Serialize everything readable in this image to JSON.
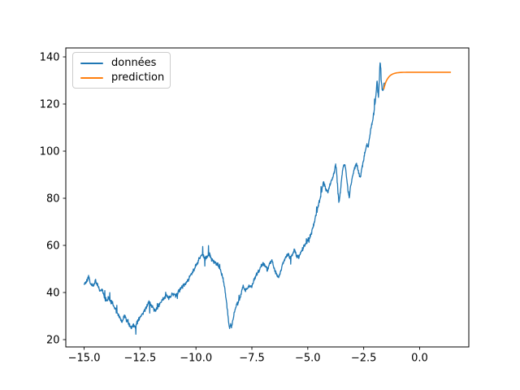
{
  "chart_data": {
    "type": "line",
    "title": "",
    "xlabel": "",
    "ylabel": "",
    "grid": false,
    "xlim": [
      -15.82,
      2.2
    ],
    "ylim": [
      16.9,
      143.8
    ],
    "x_ticks": [
      -15.0,
      -12.5,
      -10.0,
      -7.5,
      -5.0,
      -2.5,
      0.0
    ],
    "x_tick_labels": [
      "−15.0",
      "−12.5",
      "−10.0",
      "−7.5",
      "−5.0",
      "−2.5",
      "0.0"
    ],
    "y_ticks": [
      20,
      40,
      60,
      80,
      100,
      120,
      140
    ],
    "y_tick_labels": [
      "20",
      "40",
      "60",
      "80",
      "100",
      "120",
      "140"
    ],
    "legend": {
      "position": "upper-left",
      "items": [
        {
          "label": "données",
          "color": "#1f77b4"
        },
        {
          "label": "prediction",
          "color": "#ff7f0e"
        }
      ]
    },
    "series": [
      {
        "name": "données",
        "color": "#1f77b4",
        "style": "noisy-line",
        "x_range": [
          -15.0,
          -1.57
        ],
        "noise": {
          "amplitude": 1.0,
          "spike_probability": 0.03,
          "spike_amplitude": 3.5,
          "seed": 987654321
        },
        "anchors": [
          [
            -15.0,
            43.5
          ],
          [
            -14.9,
            44.5
          ],
          [
            -14.8,
            46.5
          ],
          [
            -14.7,
            43.5
          ],
          [
            -14.6,
            43.0
          ],
          [
            -14.5,
            45.0
          ],
          [
            -14.4,
            43.5
          ],
          [
            -14.3,
            40.5
          ],
          [
            -14.2,
            41.5
          ],
          [
            -14.1,
            38.0
          ],
          [
            -14.0,
            36.5
          ],
          [
            -13.9,
            38.0
          ],
          [
            -13.8,
            36.0
          ],
          [
            -13.7,
            34.5
          ],
          [
            -13.6,
            33.0
          ],
          [
            -13.5,
            31.0
          ],
          [
            -13.4,
            29.5
          ],
          [
            -13.3,
            27.5
          ],
          [
            -13.2,
            30.0
          ],
          [
            -13.1,
            28.0
          ],
          [
            -13.0,
            26.5
          ],
          [
            -12.9,
            25.0
          ],
          [
            -12.8,
            26.0
          ],
          [
            -12.7,
            25.5
          ],
          [
            -12.6,
            28.0
          ],
          [
            -12.5,
            29.5
          ],
          [
            -12.4,
            31.0
          ],
          [
            -12.3,
            32.5
          ],
          [
            -12.2,
            34.0
          ],
          [
            -12.1,
            36.0
          ],
          [
            -12.0,
            34.5
          ],
          [
            -11.9,
            33.0
          ],
          [
            -11.8,
            32.5
          ],
          [
            -11.7,
            34.0
          ],
          [
            -11.6,
            35.5
          ],
          [
            -11.5,
            37.0
          ],
          [
            -11.4,
            38.0
          ],
          [
            -11.3,
            38.5
          ],
          [
            -11.2,
            37.5
          ],
          [
            -11.1,
            39.0
          ],
          [
            -11.0,
            39.5
          ],
          [
            -10.9,
            38.5
          ],
          [
            -10.8,
            40.0
          ],
          [
            -10.7,
            41.5
          ],
          [
            -10.6,
            42.5
          ],
          [
            -10.5,
            43.5
          ],
          [
            -10.4,
            44.5
          ],
          [
            -10.3,
            46.5
          ],
          [
            -10.2,
            48.0
          ],
          [
            -10.1,
            49.5
          ],
          [
            -10.0,
            51.5
          ],
          [
            -9.9,
            53.5
          ],
          [
            -9.8,
            55.0
          ],
          [
            -9.7,
            56.5
          ],
          [
            -9.6,
            54.5
          ],
          [
            -9.5,
            55.5
          ],
          [
            -9.4,
            56.5
          ],
          [
            -9.3,
            54.0
          ],
          [
            -9.2,
            53.0
          ],
          [
            -9.1,
            52.5
          ],
          [
            -9.0,
            51.5
          ],
          [
            -8.9,
            49.5
          ],
          [
            -8.8,
            46.0
          ],
          [
            -8.7,
            41.0
          ],
          [
            -8.6,
            33.0
          ],
          [
            -8.5,
            24.5
          ],
          [
            -8.45,
            27.0
          ],
          [
            -8.4,
            25.5
          ],
          [
            -8.3,
            31.0
          ],
          [
            -8.2,
            34.5
          ],
          [
            -8.1,
            36.0
          ],
          [
            -8.0,
            38.5
          ],
          [
            -7.9,
            42.5
          ],
          [
            -7.8,
            41.0
          ],
          [
            -7.7,
            42.0
          ],
          [
            -7.6,
            43.0
          ],
          [
            -7.5,
            42.5
          ],
          [
            -7.4,
            45.5
          ],
          [
            -7.3,
            47.5
          ],
          [
            -7.2,
            49.0
          ],
          [
            -7.1,
            51.0
          ],
          [
            -7.0,
            52.5
          ],
          [
            -6.9,
            51.0
          ],
          [
            -6.8,
            49.5
          ],
          [
            -6.7,
            52.5
          ],
          [
            -6.6,
            53.5
          ],
          [
            -6.5,
            50.0
          ],
          [
            -6.4,
            47.5
          ],
          [
            -6.3,
            46.5
          ],
          [
            -6.2,
            49.5
          ],
          [
            -6.1,
            52.5
          ],
          [
            -6.0,
            55.0
          ],
          [
            -5.9,
            56.5
          ],
          [
            -5.8,
            54.5
          ],
          [
            -5.7,
            56.0
          ],
          [
            -5.6,
            58.0
          ],
          [
            -5.5,
            55.5
          ],
          [
            -5.4,
            55.0
          ],
          [
            -5.3,
            57.5
          ],
          [
            -5.2,
            59.0
          ],
          [
            -5.1,
            60.5
          ],
          [
            -5.0,
            62.0
          ],
          [
            -4.9,
            64.0
          ],
          [
            -4.8,
            66.5
          ],
          [
            -4.7,
            70.0
          ],
          [
            -4.6,
            74.0
          ],
          [
            -4.5,
            78.0
          ],
          [
            -4.4,
            82.0
          ],
          [
            -4.3,
            87.0
          ],
          [
            -4.2,
            84.0
          ],
          [
            -4.1,
            82.5
          ],
          [
            -4.0,
            86.0
          ],
          [
            -3.9,
            88.0
          ],
          [
            -3.8,
            92.0
          ],
          [
            -3.75,
            94.5
          ],
          [
            -3.7,
            90.0
          ],
          [
            -3.65,
            82.0
          ],
          [
            -3.6,
            78.0
          ],
          [
            -3.55,
            82.0
          ],
          [
            -3.5,
            87.0
          ],
          [
            -3.45,
            91.0
          ],
          [
            -3.4,
            94.0
          ],
          [
            -3.35,
            94.5
          ],
          [
            -3.3,
            92.0
          ],
          [
            -3.25,
            88.0
          ],
          [
            -3.2,
            83.0
          ],
          [
            -3.15,
            80.5
          ],
          [
            -3.1,
            84.0
          ],
          [
            -3.0,
            89.0
          ],
          [
            -2.9,
            93.0
          ],
          [
            -2.85,
            95.0
          ],
          [
            -2.8,
            94.0
          ],
          [
            -2.75,
            92.0
          ],
          [
            -2.7,
            90.0
          ],
          [
            -2.65,
            89.0
          ],
          [
            -2.6,
            92.0
          ],
          [
            -2.55,
            94.0
          ],
          [
            -2.5,
            96.5
          ],
          [
            -2.45,
            99.0
          ],
          [
            -2.4,
            101.0
          ],
          [
            -2.35,
            103.0
          ],
          [
            -2.3,
            102.0
          ],
          [
            -2.25,
            105.0
          ],
          [
            -2.2,
            108.0
          ],
          [
            -2.15,
            111.0
          ],
          [
            -2.1,
            113.0
          ],
          [
            -2.05,
            116.0
          ],
          [
            -2.0,
            119.5
          ],
          [
            -1.95,
            124.0
          ],
          [
            -1.9,
            130.0
          ],
          [
            -1.87,
            126.0
          ],
          [
            -1.84,
            123.5
          ],
          [
            -1.8,
            130.0
          ],
          [
            -1.77,
            137.5
          ],
          [
            -1.74,
            136.0
          ],
          [
            -1.71,
            130.0
          ],
          [
            -1.68,
            127.0
          ],
          [
            -1.65,
            125.5
          ],
          [
            -1.62,
            126.5
          ],
          [
            -1.59,
            128.5
          ]
        ]
      },
      {
        "name": "prediction",
        "color": "#ff7f0e",
        "style": "smooth-line",
        "model": "exponential-saturation",
        "x_range": [
          -1.6,
          1.38
        ],
        "start_value": 126.5,
        "plateau_value": 133.5,
        "time_constant": 0.18
      }
    ]
  }
}
